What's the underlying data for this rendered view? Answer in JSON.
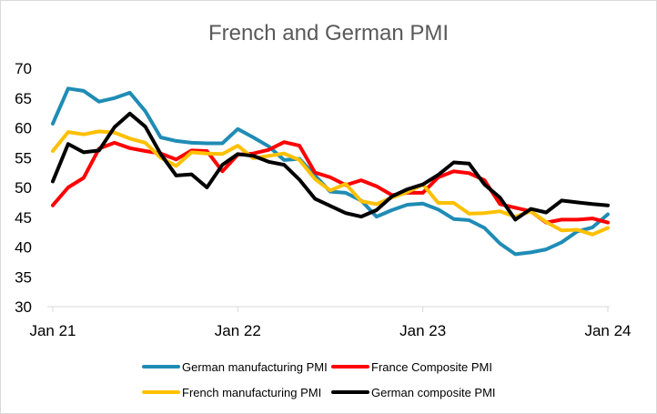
{
  "chart_data": {
    "type": "line",
    "title": "French and German PMI",
    "xlabel": "",
    "ylabel": "",
    "ylim": [
      30,
      70
    ],
    "yticks": [
      30,
      35,
      40,
      45,
      50,
      55,
      60,
      65,
      70
    ],
    "xlim": [
      "2021-01",
      "2024-01"
    ],
    "xticks": [
      "Jan 21",
      "Jan 22",
      "Jan 23",
      "Jan 24"
    ],
    "grid": false,
    "legend_position": "bottom",
    "x": [
      "2021-01",
      "2021-02",
      "2021-03",
      "2021-04",
      "2021-05",
      "2021-06",
      "2021-07",
      "2021-08",
      "2021-09",
      "2021-10",
      "2021-11",
      "2021-12",
      "2022-01",
      "2022-02",
      "2022-03",
      "2022-04",
      "2022-05",
      "2022-06",
      "2022-07",
      "2022-08",
      "2022-09",
      "2022-10",
      "2022-11",
      "2022-12",
      "2023-01",
      "2023-02",
      "2023-03",
      "2023-04",
      "2023-05",
      "2023-06",
      "2023-07",
      "2023-08",
      "2023-09",
      "2023-10",
      "2023-11",
      "2023-12",
      "2024-01"
    ],
    "series": [
      {
        "name": "German manufacturing PMI",
        "color": "#1f8cb5",
        "values": [
          60.7,
          66.6,
          66.2,
          64.4,
          65.0,
          65.9,
          62.8,
          58.4,
          57.8,
          57.5,
          57.4,
          57.4,
          59.8,
          58.4,
          56.9,
          54.6,
          54.8,
          52.0,
          49.3,
          49.1,
          47.8,
          45.1,
          46.2,
          47.1,
          47.3,
          46.3,
          44.7,
          44.5,
          43.2,
          40.6,
          38.8,
          39.1,
          39.6,
          40.8,
          42.6,
          43.3,
          45.5
        ]
      },
      {
        "name": "France Composite PMI",
        "color": "#ff0000",
        "values": [
          47.0,
          50.0,
          51.6,
          56.5,
          57.5,
          56.6,
          56.1,
          55.7,
          54.7,
          56.2,
          56.1,
          52.7,
          55.5,
          55.7,
          56.3,
          57.6,
          57.0,
          52.5,
          51.7,
          50.4,
          51.2,
          50.2,
          48.7,
          49.1,
          49.1,
          51.7,
          52.7,
          52.4,
          51.2,
          47.2,
          46.6,
          46.0,
          44.1,
          44.6,
          44.6,
          44.8,
          44.1
        ]
      },
      {
        "name": "French manufacturing PMI",
        "color": "#ffc000",
        "values": [
          56.1,
          59.3,
          58.9,
          59.4,
          59.2,
          58.2,
          57.5,
          55.0,
          53.6,
          55.9,
          55.7,
          55.6,
          57.0,
          54.9,
          55.3,
          55.7,
          54.6,
          51.4,
          49.5,
          50.6,
          47.7,
          47.2,
          48.3,
          49.2,
          50.5,
          47.4,
          47.4,
          45.6,
          45.7,
          46.0,
          45.1,
          46.0,
          44.2,
          42.8,
          42.9,
          42.1,
          43.2
        ]
      },
      {
        "name": "German composite PMI",
        "color": "#000000",
        "values": [
          51.0,
          57.3,
          55.9,
          56.2,
          60.1,
          62.4,
          60.2,
          55.6,
          52.0,
          52.2,
          50.0,
          53.8,
          55.6,
          55.3,
          54.3,
          53.8,
          51.3,
          48.1,
          46.9,
          45.7,
          45.1,
          46.2,
          48.5,
          49.7,
          50.5,
          52.1,
          54.2,
          54.0,
          50.5,
          48.3,
          44.6,
          46.4,
          45.8,
          47.8,
          47.5,
          47.2,
          47.0
        ]
      }
    ]
  }
}
